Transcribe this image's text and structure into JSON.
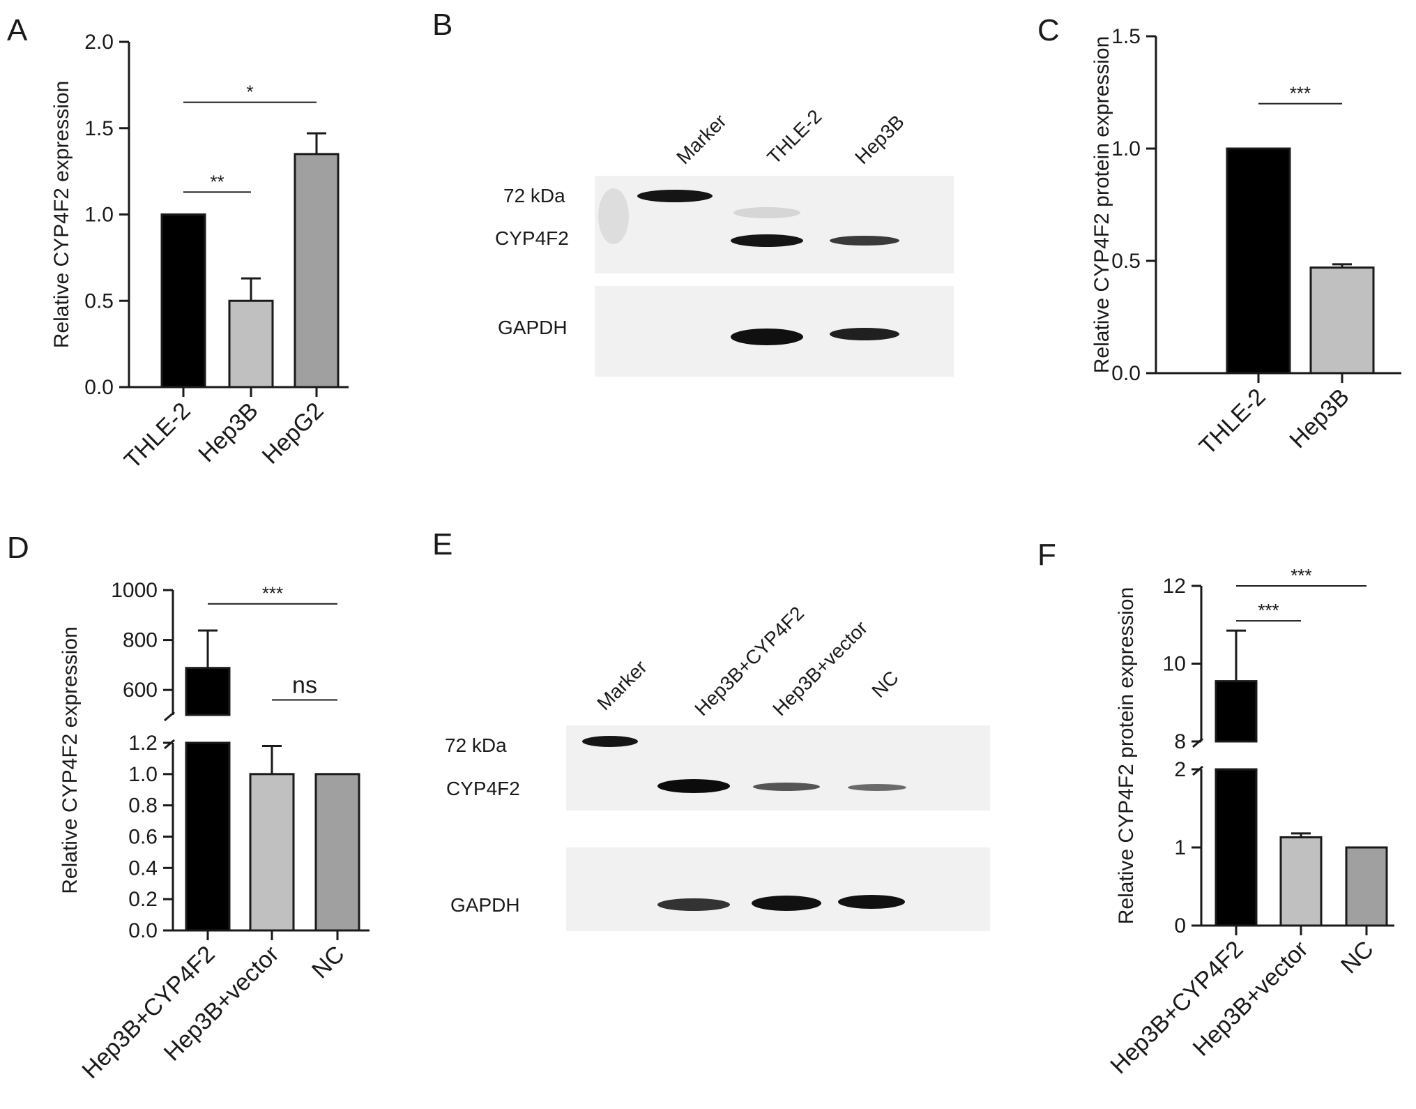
{
  "panels": {
    "A": {
      "letter": "A"
    },
    "B": {
      "letter": "B"
    },
    "C": {
      "letter": "C"
    },
    "D": {
      "letter": "D"
    },
    "E": {
      "letter": "E"
    },
    "F": {
      "letter": "F"
    }
  },
  "colors": {
    "black": "#000000",
    "light_gray": "#c0c0c0",
    "mid_gray": "#a0a0a0"
  },
  "chart_data": [
    {
      "panel": "A",
      "type": "bar",
      "ylabel": "Relative CYP4F2 expression",
      "categories": [
        "THLE-2",
        "Hep3B",
        "HepG2"
      ],
      "values": [
        1.0,
        0.5,
        1.35
      ],
      "errors": [
        0,
        0.13,
        0.12
      ],
      "bar_colors": [
        "#000000",
        "#c0c0c0",
        "#a0a0a0"
      ],
      "ylim": [
        0,
        2.0
      ],
      "yticks": [
        0.0,
        0.5,
        1.0,
        1.5,
        2.0
      ],
      "ytick_labels": [
        "0.0",
        "0.5",
        "1.0",
        "1.5",
        "2.0"
      ],
      "significance": [
        {
          "from": 0,
          "to": 1,
          "label": "**",
          "y": 1.13
        },
        {
          "from": 0,
          "to": 2,
          "label": "*",
          "y": 1.65
        }
      ]
    },
    {
      "panel": "C",
      "type": "bar",
      "ylabel": "Relative CYP4F2 protein expression",
      "categories": [
        "THLE-2",
        "Hep3B"
      ],
      "values": [
        1.0,
        0.47
      ],
      "errors": [
        0,
        0.015
      ],
      "bar_colors": [
        "#000000",
        "#c0c0c0"
      ],
      "ylim": [
        0,
        1.5
      ],
      "yticks": [
        0.0,
        0.5,
        1.0,
        1.5
      ],
      "ytick_labels": [
        "0.0",
        "0.5",
        "1.0",
        "1.5"
      ],
      "significance": [
        {
          "from": 0,
          "to": 1,
          "label": "***",
          "y": 1.2
        }
      ]
    },
    {
      "panel": "D",
      "type": "bar",
      "ylabel": "Relative CYP4F2 expression",
      "categories": [
        "Hep3B+CYP4F2",
        "Hep3B+vector",
        "NC"
      ],
      "values": [
        688,
        1.0,
        1.0
      ],
      "errors": [
        150,
        0.18,
        0
      ],
      "bar_colors": [
        "#000000",
        "#c0c0c0",
        "#a0a0a0"
      ],
      "axis_break": true,
      "lower_segment": {
        "ylim": [
          0,
          1.2
        ],
        "yticks": [
          0.0,
          0.2,
          0.4,
          0.6,
          0.8,
          1.0,
          1.2
        ],
        "ytick_labels": [
          "0.0",
          "0.2",
          "0.4",
          "0.6",
          "0.8",
          "1.0",
          "1.2"
        ]
      },
      "upper_segment": {
        "ylim": [
          500,
          1000
        ],
        "yticks": [
          600,
          800,
          1000
        ],
        "ytick_labels": [
          "600",
          "800",
          "1000"
        ]
      },
      "significance": [
        {
          "from": 0,
          "to": 2,
          "label": "***",
          "segment": "upper",
          "y": 945
        },
        {
          "from": 1,
          "to": 2,
          "label": "ns",
          "segment": "upper",
          "y": 560
        }
      ]
    },
    {
      "panel": "F",
      "type": "bar",
      "ylabel": "Relative CYP4F2 protein expression",
      "categories": [
        "Hep3B+CYP4F2",
        "Hep3B+vector",
        "NC"
      ],
      "values": [
        9.55,
        1.13,
        1.0
      ],
      "errors": [
        1.3,
        0.05,
        0
      ],
      "bar_colors": [
        "#000000",
        "#c0c0c0",
        "#a0a0a0"
      ],
      "axis_break": true,
      "lower_segment": {
        "ylim": [
          0,
          2
        ],
        "yticks": [
          0,
          1,
          2
        ],
        "ytick_labels": [
          "0",
          "1",
          "2"
        ]
      },
      "upper_segment": {
        "ylim": [
          8,
          12
        ],
        "yticks": [
          8,
          10,
          12
        ],
        "ytick_labels": [
          "8",
          "10",
          "12"
        ]
      },
      "significance": [
        {
          "from": 0,
          "to": 1,
          "label": "***",
          "segment": "upper",
          "y": 11.1
        },
        {
          "from": 0,
          "to": 2,
          "label": "***",
          "segment": "upper",
          "y": 12.0
        }
      ]
    }
  ],
  "blots": {
    "B": {
      "lanes": [
        "Marker",
        "THLE-2",
        "Hep3B"
      ],
      "marker_label": "72 kDa",
      "row_labels": [
        "CYP4F2",
        "GAPDH"
      ]
    },
    "E": {
      "lanes": [
        "Marker",
        "Hep3B+CYP4F2",
        "Hep3B+vector",
        "NC"
      ],
      "marker_label": "72 kDa",
      "row_labels": [
        "CYP4F2",
        "GAPDH"
      ]
    }
  }
}
